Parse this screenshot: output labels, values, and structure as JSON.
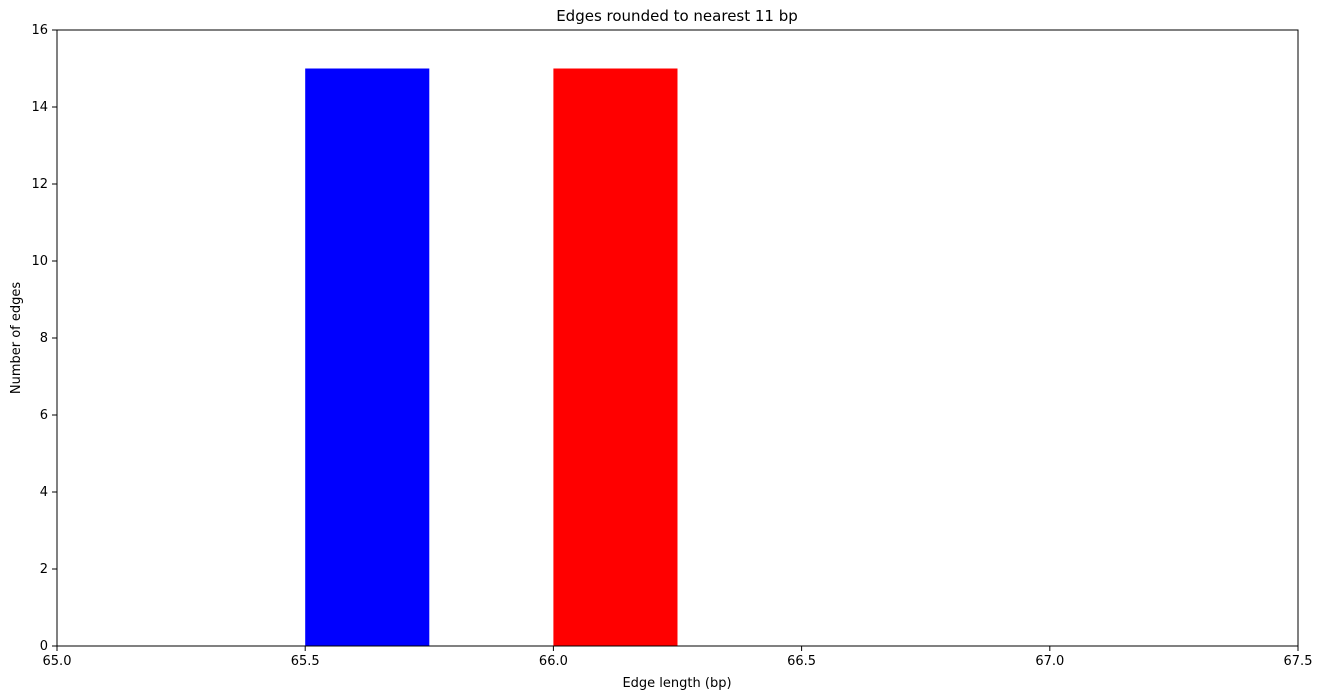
{
  "chart_data": {
    "type": "bar",
    "title": "Edges rounded to nearest 11 bp",
    "xlabel": "Edge length (bp)",
    "ylabel": "Number of edges",
    "xlim": [
      65.0,
      67.5
    ],
    "ylim": [
      0,
      16
    ],
    "xticks": [
      "65.0",
      "65.5",
      "66.0",
      "66.5",
      "67.0",
      "67.5"
    ],
    "yticks": [
      "0",
      "2",
      "4",
      "6",
      "8",
      "10",
      "12",
      "14",
      "16"
    ],
    "grid": false,
    "bars": [
      {
        "x_start": 65.5,
        "x_end": 65.75,
        "value": 15,
        "color": "#0000ff"
      },
      {
        "x_start": 66.0,
        "x_end": 66.25,
        "value": 15,
        "color": "#ff0000"
      }
    ]
  }
}
